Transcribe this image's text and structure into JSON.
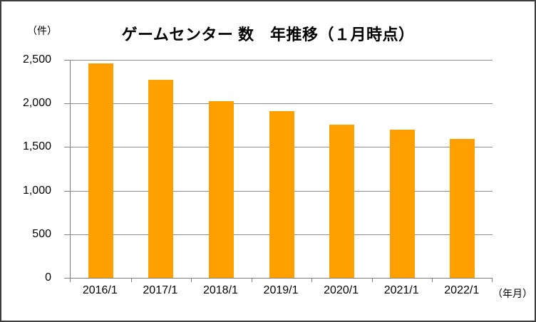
{
  "title": "ゲームセンター 数　年推移（１月時点）",
  "unit_label": "（件）",
  "x_axis_unit": "（年月）",
  "colors": {
    "bar": "#FFA000",
    "gridline": "#8C8C8C",
    "axis": "#7F7F7F",
    "frame_border": "#3E3E3E",
    "text": "#000000",
    "background": "#FFFFFF"
  },
  "chart_data": {
    "type": "bar",
    "title": "ゲームセンター 数　年推移（１月時点）",
    "categories": [
      "2016/1",
      "2017/1",
      "2018/1",
      "2019/1",
      "2020/1",
      "2021/1",
      "2022/1"
    ],
    "values": [
      2460,
      2270,
      2030,
      1910,
      1760,
      1700,
      1590
    ],
    "xlabel": "（年月）",
    "ylabel": "（件）",
    "ylim": [
      0,
      2500
    ],
    "ytick_interval": 500,
    "yticks": [
      "2,500",
      "2,000",
      "1,500",
      "1,000",
      "500",
      "0"
    ],
    "grid": true,
    "legend": false,
    "bar_color": "#FFA000"
  }
}
